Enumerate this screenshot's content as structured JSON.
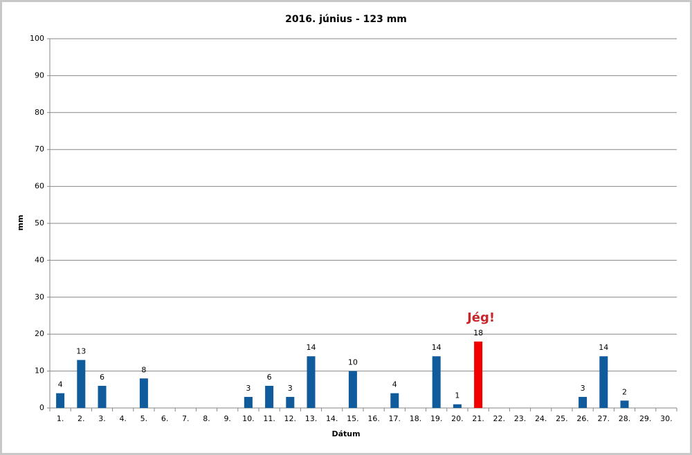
{
  "chart_data": {
    "type": "bar",
    "title": "2016.  június - 123 mm",
    "x_label": "Dátum",
    "y_label": "mm",
    "categories": [
      "1.",
      "2.",
      "3.",
      "4.",
      "5.",
      "6.",
      "7.",
      "8.",
      "9.",
      "10.",
      "11.",
      "12.",
      "13.",
      "14.",
      "15.",
      "16.",
      "17.",
      "18.",
      "19.",
      "20.",
      "21.",
      "22.",
      "23.",
      "24.",
      "25.",
      "26.",
      "27.",
      "28.",
      "29.",
      "30."
    ],
    "values": [
      4,
      13,
      6,
      null,
      8,
      null,
      null,
      null,
      null,
      3,
      6,
      3,
      14,
      null,
      10,
      null,
      4,
      null,
      14,
      1,
      18,
      null,
      null,
      null,
      null,
      3,
      14,
      2,
      null,
      null
    ],
    "color": "#0f5b9c",
    "highlight": {
      "category": "21.",
      "color": "#f20000"
    },
    "annotations": [
      {
        "text": "Jég!",
        "category": "21.",
        "color": "#c8262b"
      }
    ],
    "ylim": [
      0,
      100
    ],
    "yticks": [
      0,
      10,
      20,
      30,
      40,
      50,
      60,
      70,
      80,
      90,
      100
    ],
    "grid": true
  }
}
